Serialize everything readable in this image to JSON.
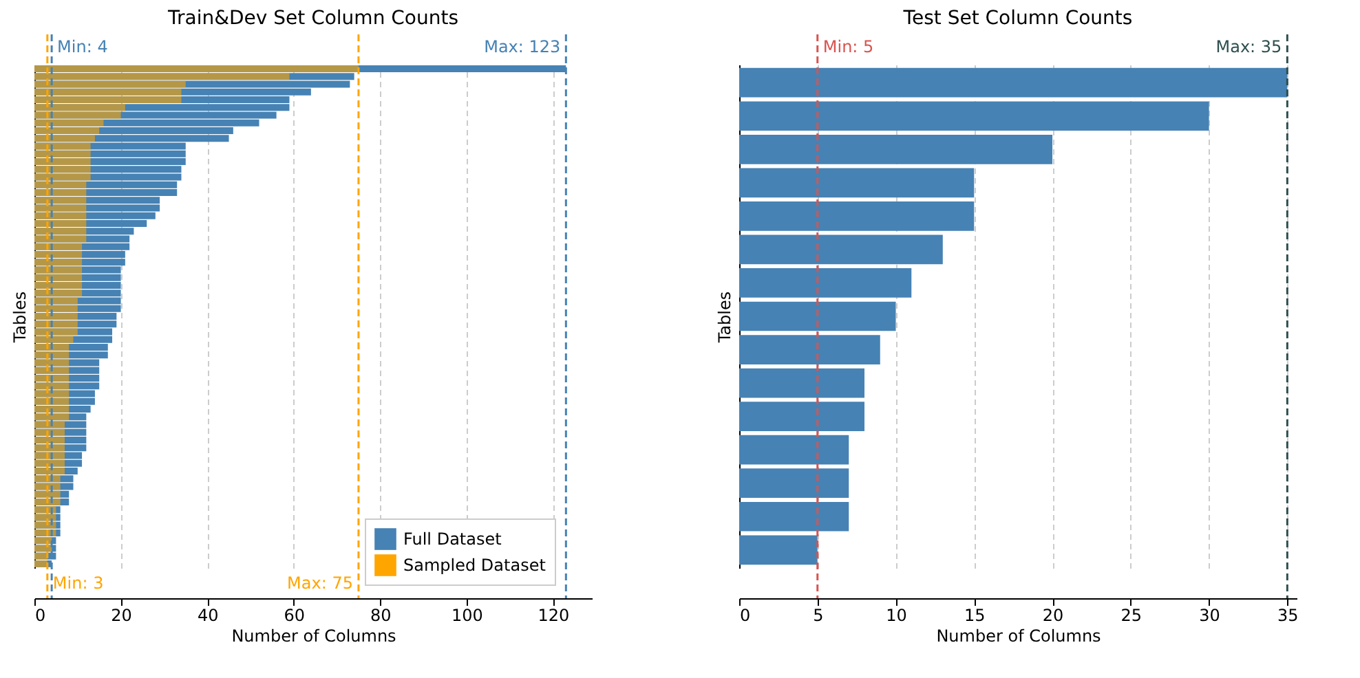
{
  "chart_data": [
    {
      "type": "bar",
      "orientation": "horizontal",
      "title": "Train&Dev Set Column Counts",
      "xlabel": "Number of Columns",
      "ylabel": "Tables",
      "categories": [
        null,
        null,
        null,
        null,
        null,
        null,
        null,
        null,
        null,
        null,
        null,
        null,
        null,
        null,
        null,
        null,
        null,
        null,
        null,
        null,
        null,
        null,
        null,
        null,
        null,
        null,
        null,
        null,
        null,
        null,
        null,
        null,
        null,
        null,
        null,
        null,
        null,
        null,
        null,
        null,
        null,
        null,
        null,
        null,
        null,
        null,
        null,
        null,
        null,
        null,
        null,
        null,
        null,
        null,
        null,
        null,
        null,
        null,
        null,
        null,
        null,
        null,
        null,
        null,
        null
      ],
      "series": [
        {
          "name": "Full Dataset",
          "color": "#4682b4",
          "values": [
            123,
            74,
            73,
            64,
            59,
            59,
            56,
            52,
            46,
            45,
            35,
            35,
            35,
            34,
            34,
            33,
            33,
            29,
            29,
            28,
            26,
            23,
            22,
            22,
            21,
            21,
            20,
            20,
            20,
            20,
            20,
            20,
            19,
            19,
            18,
            18,
            17,
            17,
            15,
            15,
            15,
            15,
            14,
            14,
            13,
            12,
            12,
            12,
            12,
            12,
            11,
            11,
            10,
            9,
            9,
            8,
            8,
            6,
            6,
            6,
            6,
            5,
            5,
            5,
            4
          ]
        },
        {
          "name": "Sampled Dataset",
          "color": "#ffa500",
          "values": [
            75,
            59,
            35,
            34,
            34,
            21,
            20,
            16,
            15,
            14,
            13,
            13,
            13,
            13,
            13,
            12,
            12,
            12,
            12,
            12,
            12,
            12,
            12,
            11,
            11,
            11,
            11,
            11,
            11,
            11,
            10,
            10,
            10,
            10,
            10,
            9,
            8,
            8,
            8,
            8,
            8,
            8,
            8,
            8,
            8,
            8,
            7,
            7,
            7,
            7,
            7,
            7,
            7,
            6,
            6,
            6,
            6,
            5,
            5,
            5,
            5,
            4,
            4,
            3,
            3
          ]
        }
      ],
      "xlim": [
        0,
        129
      ],
      "xticks": [
        0,
        20,
        40,
        60,
        80,
        100,
        120
      ],
      "grid": "x",
      "legend": "bottom right",
      "tick_labels": "x",
      "ref_lines": [
        {
          "axis": "x",
          "value": 4,
          "label": "Min: 4",
          "color": "#4682b4",
          "line_style": "dashed"
        },
        {
          "axis": "x",
          "value": 123,
          "label": "Max: 123",
          "color": "#4682b4",
          "line_style": "dashed"
        },
        {
          "axis": "x",
          "value": 3,
          "label": "Min: 3",
          "color": "#ffa500",
          "line_style": "dashed"
        },
        {
          "axis": "x",
          "value": 75,
          "label": "Max: 75",
          "color": "#ffa500",
          "line_style": "dashed"
        }
      ]
    },
    {
      "type": "bar",
      "orientation": "horizontal",
      "title": "Test Set Column Counts",
      "xlabel": "Number of Columns",
      "ylabel": "Tables",
      "categories": [
        null,
        null,
        null,
        null,
        null,
        null,
        null,
        null,
        null,
        null,
        null,
        null,
        null,
        null,
        null
      ],
      "series": [
        {
          "color": "#4682b4",
          "values": [
            35,
            30,
            20,
            15,
            15,
            13,
            11,
            10,
            9,
            8,
            8,
            7,
            7,
            7,
            5
          ]
        }
      ],
      "xlim": [
        0,
        35.6
      ],
      "xticks": [
        0,
        5,
        10,
        15,
        20,
        25,
        30,
        35
      ],
      "grid": "x",
      "tick_labels": "x",
      "ref_lines": [
        {
          "axis": "x",
          "value": 5,
          "label": "Min: 5",
          "color": "#d9534f",
          "line_style": "dashed"
        },
        {
          "axis": "x",
          "value": 35,
          "label": "Max: 35",
          "color": "#2f4f4f",
          "line_style": "dashed"
        }
      ]
    }
  ]
}
